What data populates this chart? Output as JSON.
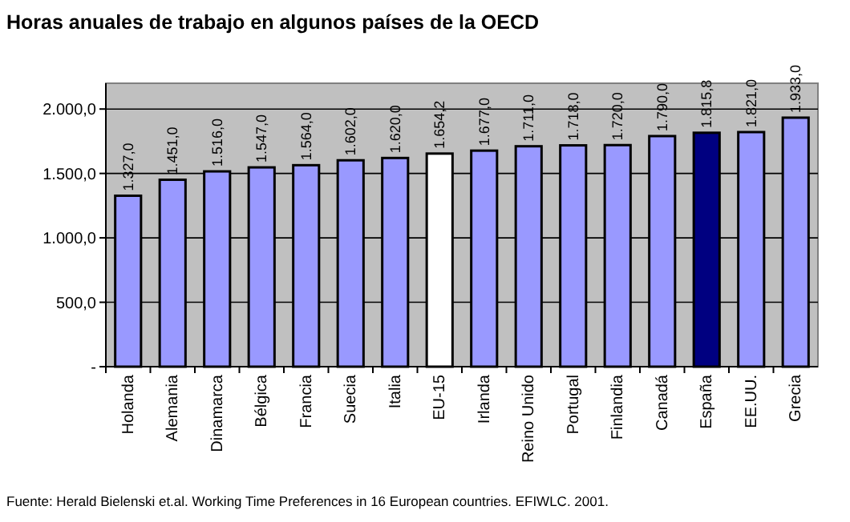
{
  "chart_data": {
    "type": "bar",
    "title": "Horas anuales de trabajo en algunos países de la OECD",
    "categories": [
      "Holanda",
      "Alemania",
      "Dinamarca",
      "Bélgica",
      "Francia",
      "Suecia",
      "Italia",
      "EU-15",
      "Irlanda",
      "Reino Unido",
      "Portugal",
      "Finlandia",
      "Canadá",
      "España",
      "EE.UU.",
      "Grecia"
    ],
    "values": [
      1327,
      1451,
      1516,
      1547,
      1564,
      1602,
      1620,
      1654.2,
      1677,
      1711,
      1718,
      1720,
      1790,
      1815.8,
      1821,
      1933
    ],
    "value_labels": [
      "1.327,0",
      "1.451,0",
      "1.516,0",
      "1.547,0",
      "1.564,0",
      "1.602,0",
      "1.620,0",
      "1.654,2",
      "1.677,0",
      "1.711,0",
      "1.718,0",
      "1.720,0",
      "1.790,0",
      "1.815,8",
      "1.821,0",
      "1.933,0"
    ],
    "colors": [
      "#9999ff",
      "#9999ff",
      "#9999ff",
      "#9999ff",
      "#9999ff",
      "#9999ff",
      "#9999ff",
      "#ffffff",
      "#9999ff",
      "#9999ff",
      "#9999ff",
      "#9999ff",
      "#9999ff",
      "#000080",
      "#9999ff",
      "#9999ff"
    ],
    "ylim": [
      0,
      2200
    ],
    "yticks": [
      {
        "value": 0,
        "label": "-"
      },
      {
        "value": 500,
        "label": "500,0"
      },
      {
        "value": 1000,
        "label": "1.000,0"
      },
      {
        "value": 1500,
        "label": "1.500,0"
      },
      {
        "value": 2000,
        "label": "2.000,0"
      }
    ],
    "grid": "y",
    "annotations": [
      "Fuente: Herald Bielenski et.al. Working Time Preferences in 16 European countries. EFIWLC. 2001."
    ]
  }
}
